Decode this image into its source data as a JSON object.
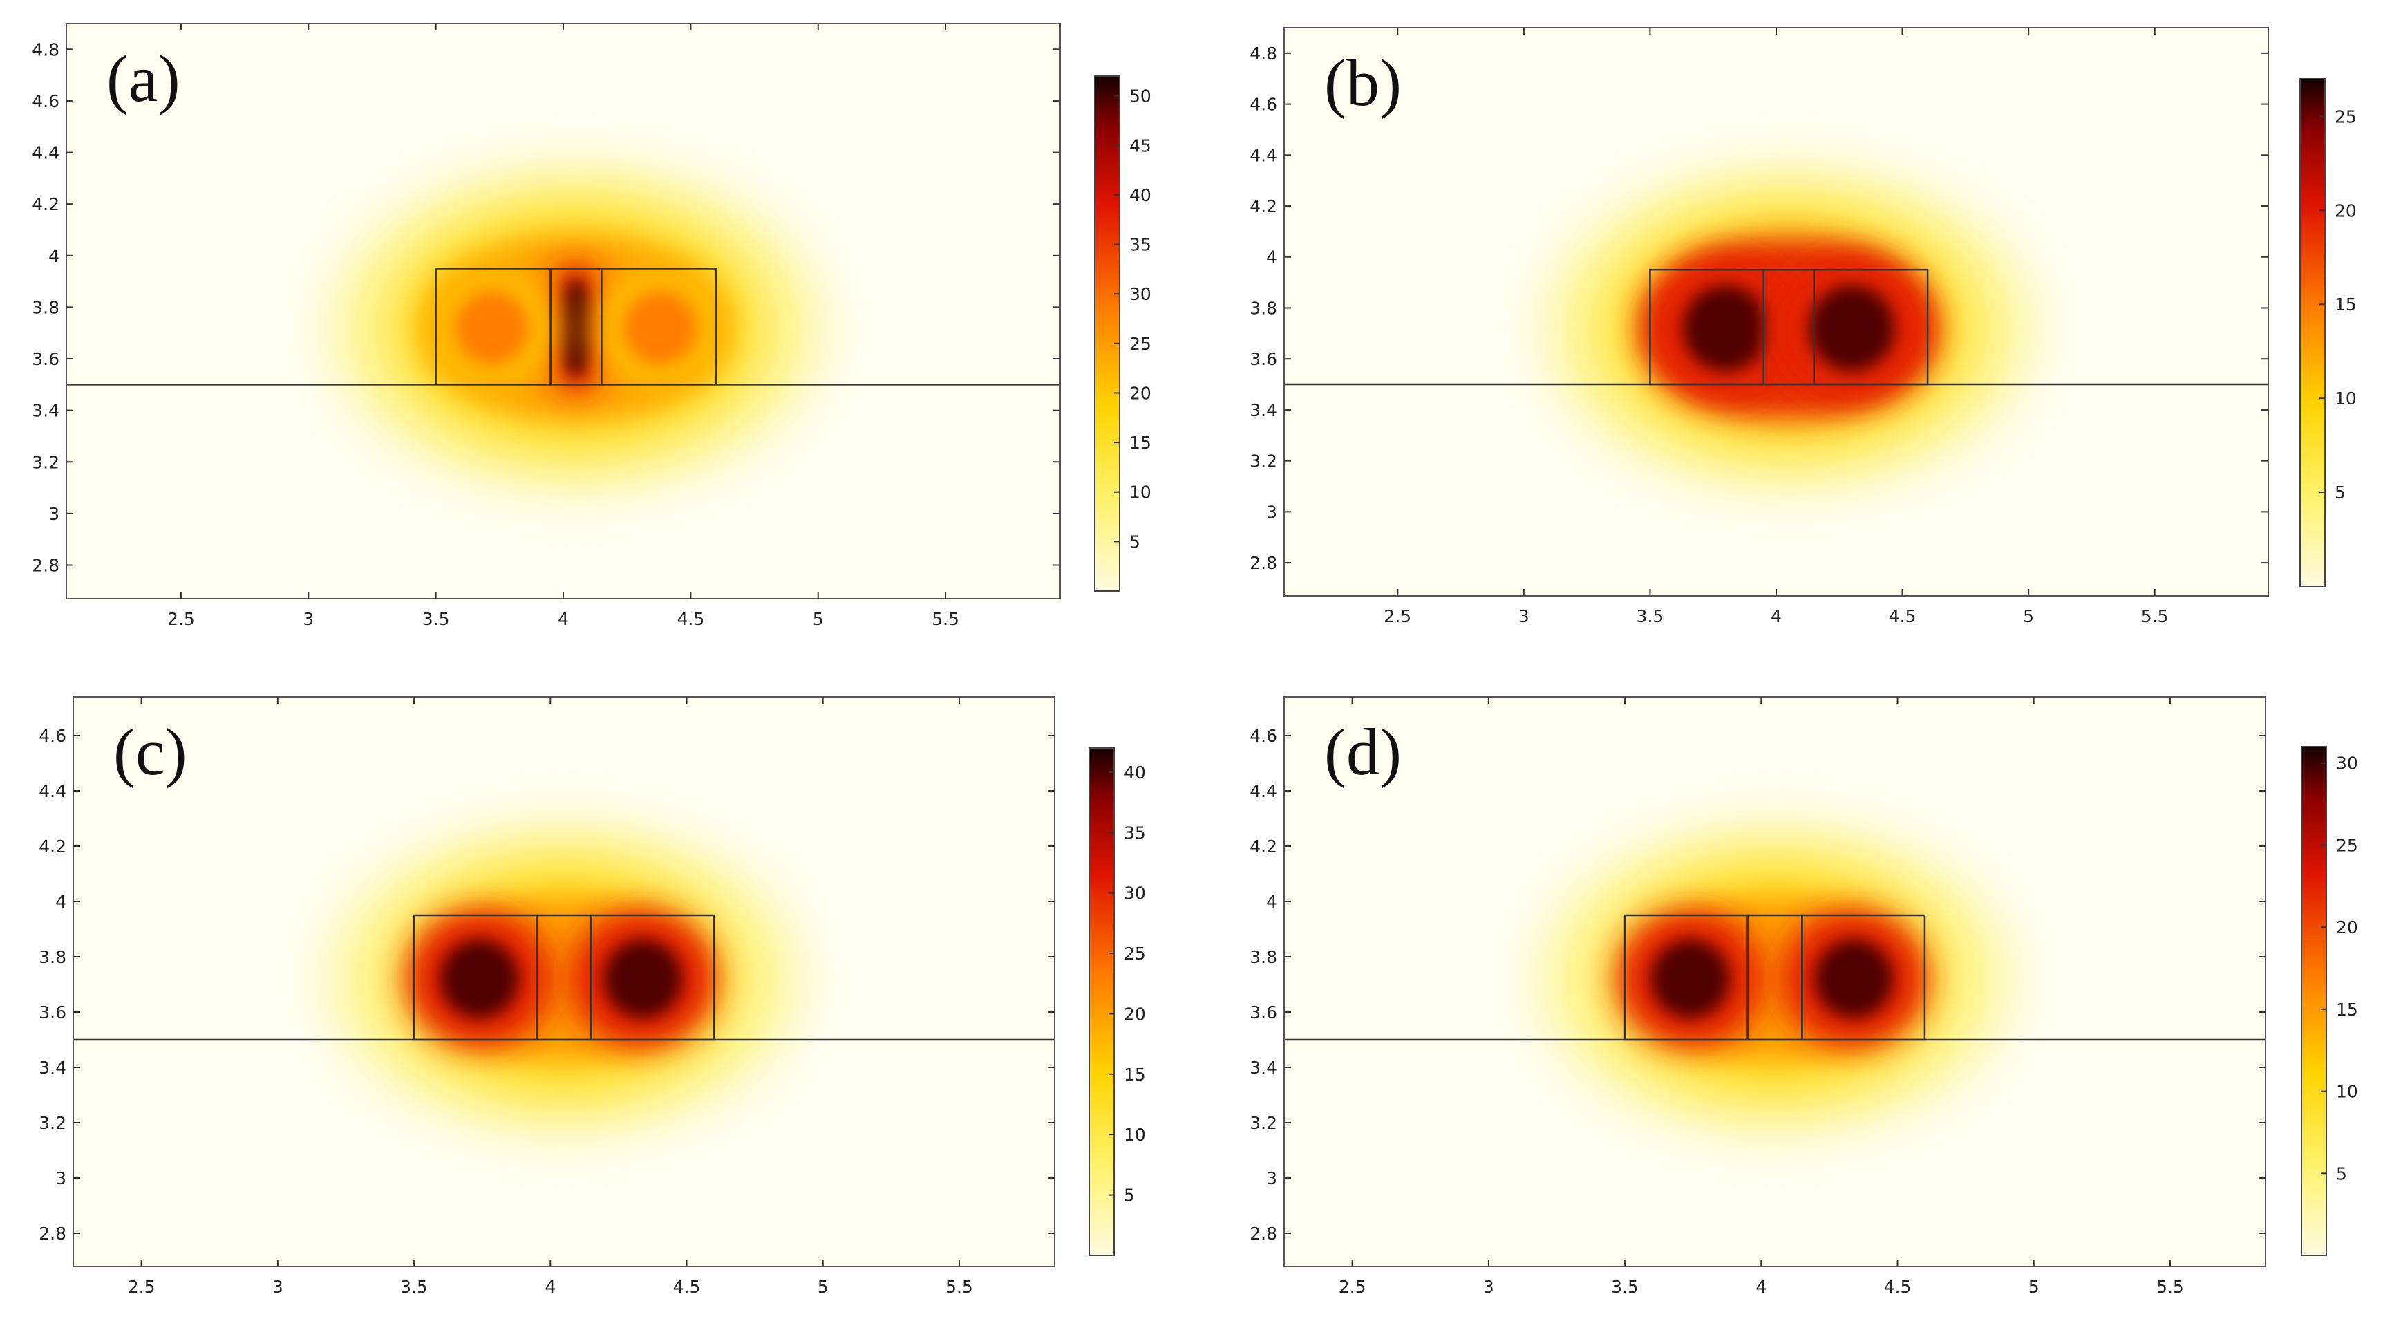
{
  "chart_data": [
    {
      "type": "heatmap",
      "panel_label": "(a)",
      "xticks": [
        "2.5",
        "3",
        "3.5",
        "4",
        "4.5",
        "5",
        "5.5"
      ],
      "yticks": [
        "2.8",
        "3",
        "3.2",
        "3.4",
        "3.6",
        "3.8",
        "4",
        "4.2",
        "4.4",
        "4.6",
        "4.8"
      ],
      "xlim": [
        2.05,
        5.95
      ],
      "ylim": [
        2.67,
        4.9
      ],
      "substrate_y": 3.5,
      "boxes": [
        [
          3.5,
          3.95,
          3.5,
          3.95
        ],
        [
          3.95,
          4.15,
          3.5,
          3.95
        ],
        [
          4.15,
          4.6,
          3.5,
          3.95
        ]
      ],
      "colorbar": {
        "min": 0,
        "max": 52,
        "ticks": [
          "5",
          "10",
          "15",
          "20",
          "25",
          "30",
          "35",
          "40",
          "45",
          "50"
        ]
      },
      "field_peaks": [
        {
          "x": 4.05,
          "y": 3.72,
          "value": 52
        },
        {
          "x": 3.72,
          "y": 3.72,
          "value": 30
        },
        {
          "x": 4.38,
          "y": 3.72,
          "value": 30
        }
      ]
    },
    {
      "type": "heatmap",
      "panel_label": "(b)",
      "xticks": [
        "2.5",
        "3",
        "3.5",
        "4",
        "4.5",
        "5",
        "5.5"
      ],
      "yticks": [
        "2.8",
        "3",
        "3.2",
        "3.4",
        "3.6",
        "3.8",
        "4",
        "4.2",
        "4.4",
        "4.6",
        "4.8"
      ],
      "xlim": [
        2.05,
        5.95
      ],
      "ylim": [
        2.67,
        4.9
      ],
      "substrate_y": 3.5,
      "boxes": [
        [
          3.5,
          3.95,
          3.5,
          3.95
        ],
        [
          3.95,
          4.15,
          3.5,
          3.95
        ],
        [
          4.15,
          4.6,
          3.5,
          3.95
        ]
      ],
      "colorbar": {
        "min": 0,
        "max": 27,
        "ticks": [
          "5",
          "10",
          "15",
          "20",
          "25"
        ]
      },
      "field_peaks": [
        {
          "x": 3.8,
          "y": 3.72,
          "value": 27
        },
        {
          "x": 4.3,
          "y": 3.72,
          "value": 27
        }
      ]
    },
    {
      "type": "heatmap",
      "panel_label": "(c)",
      "xticks": [
        "2.5",
        "3",
        "3.5",
        "4",
        "4.5",
        "5",
        "5.5"
      ],
      "yticks": [
        "2.8",
        "3",
        "3.2",
        "3.4",
        "3.6",
        "3.8",
        "4",
        "4.2",
        "4.4",
        "4.6"
      ],
      "xlim": [
        2.25,
        5.85
      ],
      "ylim": [
        2.68,
        4.74
      ],
      "substrate_y": 3.5,
      "boxes": [
        [
          3.5,
          3.95,
          3.5,
          3.95
        ],
        [
          3.95,
          4.15,
          3.5,
          3.95
        ],
        [
          4.15,
          4.6,
          3.5,
          3.95
        ]
      ],
      "colorbar": {
        "min": 0,
        "max": 42,
        "ticks": [
          "5",
          "10",
          "15",
          "20",
          "25",
          "30",
          "35",
          "40"
        ]
      },
      "field_peaks": [
        {
          "x": 3.74,
          "y": 3.72,
          "value": 42
        },
        {
          "x": 4.34,
          "y": 3.72,
          "value": 42
        }
      ]
    },
    {
      "type": "heatmap",
      "panel_label": "(d)",
      "xticks": [
        "2.5",
        "3",
        "3.5",
        "4",
        "4.5",
        "5",
        "5.5"
      ],
      "yticks": [
        "2.8",
        "3",
        "3.2",
        "3.4",
        "3.6",
        "3.8",
        "4",
        "4.2",
        "4.4",
        "4.6"
      ],
      "xlim": [
        2.25,
        5.85
      ],
      "ylim": [
        2.68,
        4.74
      ],
      "substrate_y": 3.5,
      "boxes": [
        [
          3.5,
          3.95,
          3.5,
          3.95
        ],
        [
          3.95,
          4.15,
          3.5,
          3.95
        ],
        [
          4.15,
          4.6,
          3.5,
          3.95
        ]
      ],
      "colorbar": {
        "min": 0,
        "max": 31,
        "ticks": [
          "5",
          "10",
          "15",
          "20",
          "25",
          "30"
        ]
      },
      "field_peaks": [
        {
          "x": 3.74,
          "y": 3.72,
          "value": 31
        },
        {
          "x": 4.34,
          "y": 3.72,
          "value": 31
        }
      ]
    }
  ]
}
